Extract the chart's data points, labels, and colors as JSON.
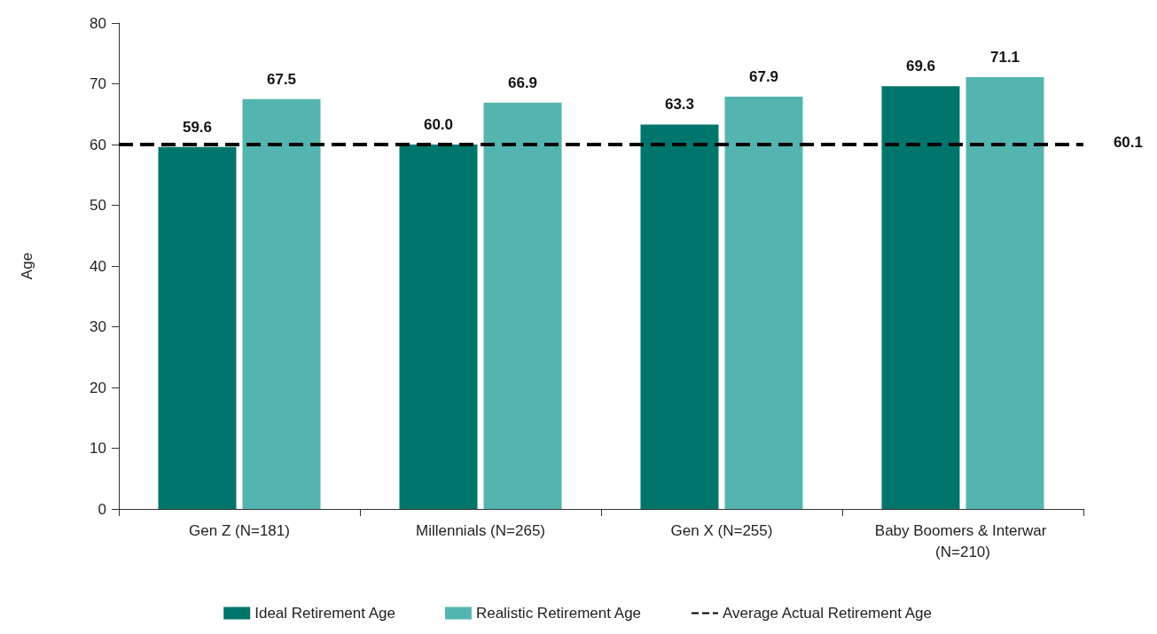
{
  "chart_data": {
    "type": "bar",
    "ylabel": "Age",
    "categories": [
      "Gen Z (N=181)",
      "Millennials (N=265)",
      "Gen X (N=255)",
      "Baby Boomers & Interwar (N=210)"
    ],
    "series": [
      {
        "name": "Ideal Retirement Age",
        "color": "#00756c",
        "values": [
          59.6,
          60.0,
          63.3,
          69.6
        ],
        "value_labels": [
          "59.6",
          "60.0",
          "63.3",
          "69.6"
        ]
      },
      {
        "name": "Realistic Retirement Age",
        "color": "#54b5b0",
        "values": [
          67.5,
          66.9,
          67.9,
          71.1
        ],
        "value_labels": [
          "67.5",
          "66.9",
          "67.9",
          "71.1"
        ]
      }
    ],
    "ref_lines": [
      {
        "axis": "y",
        "value": 60.1,
        "label": "Average Actual Retirement Age",
        "color": "#000000",
        "line_style": "dashed"
      }
    ],
    "annotations": [
      "60.1"
    ],
    "ylim": [
      0,
      80
    ],
    "yticks": [
      0,
      10,
      20,
      30,
      40,
      50,
      60,
      70,
      80
    ],
    "grid": false,
    "legend": "bottom"
  }
}
